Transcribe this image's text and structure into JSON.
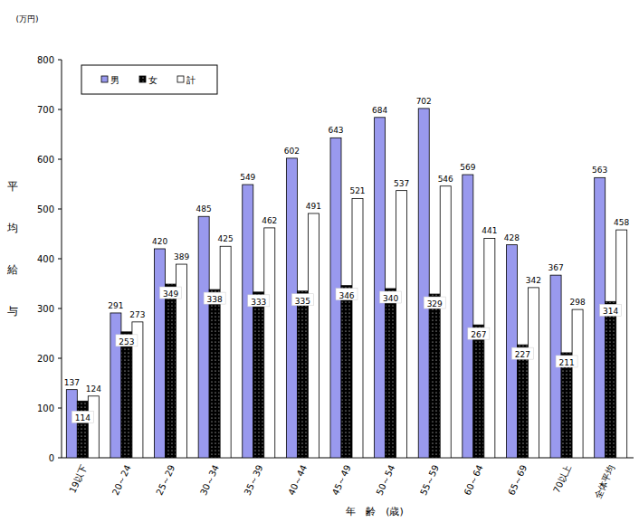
{
  "chart_data": {
    "type": "bar",
    "annotations": [
      "(万円)"
    ],
    "y_label": "平均給与",
    "x_label": "年　齢　(歳)",
    "categories": [
      "19以下",
      "20～24",
      "25～29",
      "30～34",
      "35～39",
      "40～44",
      "45～49",
      "50～54",
      "55～59",
      "60～64",
      "65～69",
      "70以上",
      "全体平均"
    ],
    "series": [
      {
        "name": "男",
        "color": "#9999ee",
        "values": [
          137,
          291,
          420,
          485,
          549,
          602,
          643,
          684,
          702,
          569,
          428,
          367,
          563
        ]
      },
      {
        "name": "女",
        "color": "#000000",
        "values": [
          114,
          253,
          349,
          338,
          333,
          335,
          346,
          340,
          329,
          267,
          227,
          211,
          314
        ]
      },
      {
        "name": "計",
        "color": "#ffffff",
        "values": [
          124,
          273,
          389,
          425,
          462,
          491,
          521,
          537,
          546,
          441,
          342,
          298,
          458
        ]
      }
    ],
    "ylim": [
      0,
      800
    ],
    "yticks": [
      0,
      100,
      200,
      300,
      400,
      500,
      600,
      700,
      800
    ],
    "grid": false,
    "legend": "top-left",
    "data_labels": true
  }
}
